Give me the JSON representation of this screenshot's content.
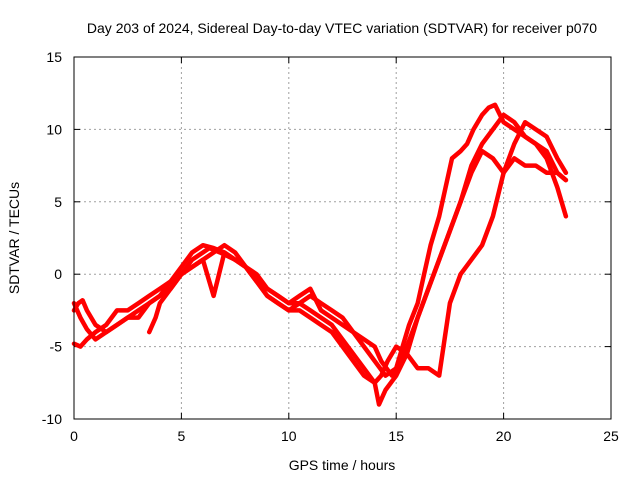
{
  "chart_data": {
    "type": "line",
    "title": "Day 203 of 2024, Sidereal Day-to-day VTEC variation (SDTVAR) for receiver p070",
    "xlabel": "GPS time / hours",
    "ylabel": "SDTVAR / TECUs",
    "xlim": [
      0,
      25
    ],
    "ylim": [
      -10,
      15
    ],
    "xticks": [
      0,
      5,
      10,
      15,
      20,
      25
    ],
    "yticks": [
      -10,
      -5,
      0,
      5,
      10,
      15
    ],
    "grid": true,
    "marker": "plus",
    "color": "#ff0000",
    "series": [
      {
        "x": [
          0.0,
          0.2,
          0.4,
          0.6,
          1.0,
          1.5,
          2.0,
          2.5,
          3.0,
          3.5,
          4.0,
          4.5,
          5.0,
          5.5,
          6.0,
          6.3,
          6.8,
          7.5,
          8.0,
          8.5,
          9.0,
          9.5,
          10.0,
          10.5,
          11.0,
          11.5,
          12.0,
          12.5,
          13.0,
          13.5,
          14.0,
          14.3,
          14.6,
          15.0,
          15.5,
          16.0,
          16.5,
          17.0,
          17.5,
          18.0,
          18.5,
          19.0,
          19.5,
          20.0,
          20.5,
          21.0,
          21.5,
          22.0,
          22.5,
          22.9
        ],
        "y": [
          -2.5,
          -2.0,
          -1.8,
          -2.5,
          -3.5,
          -4.0,
          -3.5,
          -3.0,
          -3.0,
          -2.0,
          -1.5,
          -1.0,
          0.0,
          1.0,
          1.5,
          1.8,
          1.5,
          1.0,
          0.5,
          -0.5,
          -1.5,
          -2.0,
          -2.5,
          -2.5,
          -3.0,
          -3.5,
          -4.0,
          -5.0,
          -6.0,
          -7.0,
          -7.5,
          -7.0,
          -6.0,
          -5.0,
          -5.5,
          -6.5,
          -6.5,
          -7.0,
          -2.0,
          0.0,
          1.0,
          2.0,
          4.0,
          7.0,
          8.0,
          7.5,
          7.5,
          7.0,
          7.0,
          6.5
        ]
      },
      {
        "x": [
          0.0,
          0.3,
          0.6,
          1.0,
          1.5,
          2.0,
          2.5,
          3.0,
          3.5,
          4.0,
          4.5,
          5.0,
          5.5,
          6.0,
          6.5,
          7.0,
          7.5,
          8.0,
          8.5,
          9.0,
          9.5,
          10.0,
          10.5,
          11.0,
          11.5,
          12.0,
          12.5,
          13.0,
          13.5,
          14.0,
          14.2,
          14.5,
          15.0,
          15.5,
          16.0,
          16.5,
          17.0,
          17.5,
          18.0,
          18.5,
          19.0,
          19.5,
          20.0,
          20.5,
          21.0,
          21.5,
          22.0,
          22.5,
          22.9
        ],
        "y": [
          -4.8,
          -5.0,
          -4.5,
          -4.0,
          -3.5,
          -2.5,
          -2.5,
          -2.0,
          -1.5,
          -1.0,
          -0.5,
          0.0,
          0.5,
          1.0,
          1.5,
          2.0,
          1.5,
          0.5,
          -0.5,
          -1.0,
          -1.5,
          -2.0,
          -2.0,
          -2.5,
          -3.0,
          -3.5,
          -4.5,
          -5.5,
          -6.5,
          -7.5,
          -9.0,
          -8.0,
          -7.0,
          -5.5,
          -3.0,
          -1.0,
          1.0,
          3.0,
          5.0,
          7.0,
          8.5,
          8.0,
          7.0,
          9.0,
          10.5,
          10.0,
          9.5,
          8.0,
          7.0
        ]
      },
      {
        "x": [
          0.0,
          0.3,
          0.6,
          1.0,
          1.5,
          2.0,
          2.5,
          3.0,
          3.5,
          4.0,
          4.5,
          5.0,
          5.5,
          6.0,
          6.5,
          7.0,
          7.5,
          8.0,
          8.5,
          9.0,
          9.5,
          10.0,
          10.5,
          11.0,
          11.5,
          12.0,
          12.5,
          13.0,
          13.5,
          14.0,
          14.5,
          15.0,
          15.5,
          16.0,
          16.5,
          17.0,
          17.5,
          18.0,
          18.5,
          19.0,
          19.5,
          20.0,
          20.5,
          21.0,
          21.5,
          22.0,
          22.5,
          22.9
        ],
        "y": [
          -2.0,
          -3.0,
          -3.8,
          -4.5,
          -4.0,
          -3.5,
          -3.0,
          -2.5,
          -2.0,
          -1.5,
          -0.5,
          0.5,
          1.5,
          2.0,
          1.8,
          1.5,
          1.0,
          0.5,
          -0.5,
          -1.5,
          -2.0,
          -2.5,
          -2.0,
          -1.5,
          -2.0,
          -2.5,
          -3.0,
          -4.0,
          -5.0,
          -6.0,
          -7.0,
          -6.5,
          -5.0,
          -3.0,
          -1.0,
          1.0,
          3.0,
          5.0,
          7.5,
          9.0,
          10.0,
          11.0,
          10.5,
          9.5,
          9.0,
          8.0,
          6.0,
          4.0
        ]
      },
      {
        "x": [
          3.5,
          3.8,
          4.0,
          4.5,
          5.0,
          5.5,
          6.0,
          6.3,
          6.5,
          7.0,
          7.5,
          8.0,
          8.5,
          9.0,
          9.5,
          10.0,
          10.5,
          11.0,
          11.5,
          12.0,
          12.5,
          13.0,
          13.5,
          14.0,
          14.3,
          14.8,
          15.0,
          15.3,
          15.6,
          16.0,
          16.3,
          16.6,
          17.0,
          17.3,
          17.6,
          18.0,
          18.3,
          18.6,
          19.0,
          19.3,
          19.6,
          20.0,
          20.5,
          21.0,
          21.5,
          22.0,
          22.5,
          22.9
        ],
        "y": [
          -4.0,
          -3.0,
          -2.0,
          -1.0,
          0.0,
          0.5,
          1.0,
          -0.5,
          -1.5,
          1.5,
          1.0,
          0.5,
          0.0,
          -1.0,
          -1.5,
          -2.0,
          -1.5,
          -1.0,
          -2.5,
          -3.0,
          -3.5,
          -4.0,
          -4.5,
          -5.0,
          -6.0,
          -7.0,
          -6.5,
          -5.0,
          -3.5,
          -2.0,
          0.0,
          2.0,
          4.0,
          6.0,
          8.0,
          8.5,
          9.0,
          10.0,
          11.0,
          11.5,
          11.7,
          10.5,
          10.0,
          9.5,
          9.0,
          8.5,
          7.0,
          6.5
        ]
      }
    ]
  }
}
